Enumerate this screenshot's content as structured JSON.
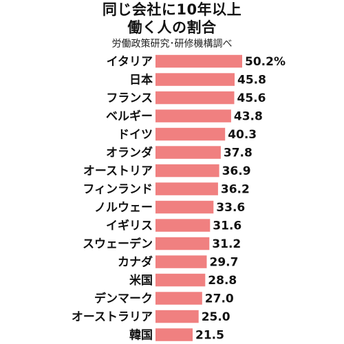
{
  "chart_data": {
    "type": "bar",
    "orientation": "horizontal",
    "title_line1": "同じ会社に10年以上",
    "title_line2": "働く人の割合",
    "source": "労働政策研究･研修機構調べ",
    "bar_color": "#F08080",
    "categories": [
      "イタリア",
      "日本",
      "フランス",
      "ベルギー",
      "ドイツ",
      "オランダ",
      "オーストリア",
      "フィンランド",
      "ノルウェー",
      "イギリス",
      "スウェーデン",
      "カナダ",
      "米国",
      "デンマーク",
      "オーストラリア",
      "韓国"
    ],
    "values": [
      50.2,
      45.8,
      45.6,
      43.8,
      40.3,
      37.8,
      36.9,
      36.2,
      33.6,
      31.6,
      31.2,
      29.7,
      28.8,
      27.0,
      25.0,
      21.5
    ],
    "value_labels": [
      "50.2%",
      "45.8",
      "45.6",
      "43.8",
      "40.3",
      "37.8",
      "36.9",
      "36.2",
      "33.6",
      "31.6",
      "31.2",
      "29.7",
      "28.8",
      "27.0",
      "25.0",
      "21.5"
    ],
    "xlim": [
      0,
      50.2
    ],
    "grid": false,
    "legend": "none"
  }
}
